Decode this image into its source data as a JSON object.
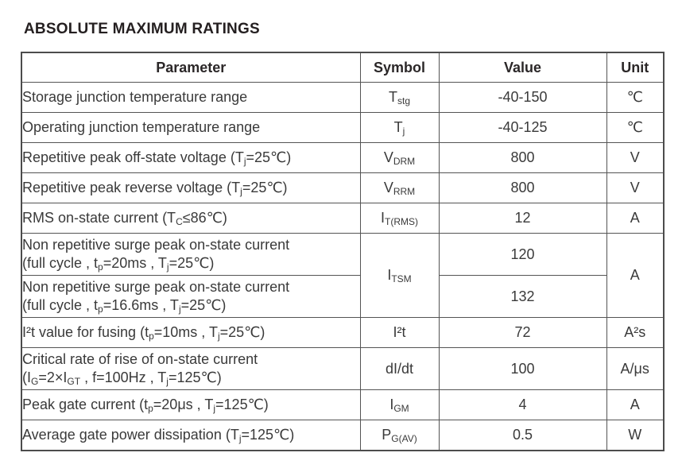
{
  "title": "ABSOLUTE MAXIMUM RATINGS",
  "table": {
    "headers": {
      "parameter": "Parameter",
      "symbol": "Symbol",
      "value": "Value",
      "unit": "Unit"
    },
    "rows": [
      {
        "parameter": [
          {
            "t": "Storage junction temperature range"
          }
        ],
        "symbol": [
          {
            "t": "T"
          },
          {
            "t": "stg",
            "sub": true
          }
        ],
        "value": "-40-150",
        "unit": "℃"
      },
      {
        "parameter": [
          {
            "t": "Operating junction temperature range"
          }
        ],
        "symbol": [
          {
            "t": "T"
          },
          {
            "t": "j",
            "sub": true
          }
        ],
        "value": "-40-125",
        "unit": "℃"
      },
      {
        "parameter": [
          {
            "t": "Repetitive peak off-state voltage (T"
          },
          {
            "t": "j",
            "sub": true
          },
          {
            "t": "=25℃)"
          }
        ],
        "symbol": [
          {
            "t": "V"
          },
          {
            "t": "DRM",
            "sub": true
          }
        ],
        "value": "800",
        "unit": "V"
      },
      {
        "parameter": [
          {
            "t": "Repetitive peak reverse voltage (T"
          },
          {
            "t": "j",
            "sub": true
          },
          {
            "t": "=25℃)"
          }
        ],
        "symbol": [
          {
            "t": "V"
          },
          {
            "t": "RRM",
            "sub": true
          }
        ],
        "value": "800",
        "unit": "V"
      },
      {
        "parameter": [
          {
            "t": "RMS on-state current (T"
          },
          {
            "t": "C",
            "sub": true
          },
          {
            "t": "≤86℃)"
          }
        ],
        "symbol": [
          {
            "t": "I"
          },
          {
            "t": "T(RMS)",
            "sub": true
          }
        ],
        "value": "12",
        "unit": "A"
      },
      {
        "parameter": [
          {
            "t": "Non repetitive surge peak on-state current"
          },
          {
            "br": true
          },
          {
            "t": "(full cycle , t"
          },
          {
            "t": "p",
            "sub": true
          },
          {
            "t": "=20ms , T"
          },
          {
            "t": "j",
            "sub": true
          },
          {
            "t": "=25℃)"
          }
        ],
        "symbol": [
          {
            "t": "I"
          },
          {
            "t": "TSM",
            "sub": true
          }
        ],
        "value": "120",
        "unit": "A"
      },
      {
        "parameter": [
          {
            "t": "Non repetitive surge peak on-state current"
          },
          {
            "br": true
          },
          {
            "t": "(full cycle , t"
          },
          {
            "t": "p",
            "sub": true
          },
          {
            "t": "=16.6ms , T"
          },
          {
            "t": "j",
            "sub": true
          },
          {
            "t": "=25℃)"
          }
        ],
        "value": "132"
      },
      {
        "parameter": [
          {
            "t": "I²t value for fusing (t"
          },
          {
            "t": "p",
            "sub": true
          },
          {
            "t": "=10ms , T"
          },
          {
            "t": "j",
            "sub": true
          },
          {
            "t": "=25℃)"
          }
        ],
        "symbol": [
          {
            "t": "I²t"
          }
        ],
        "value": "72",
        "unit": "A²s"
      },
      {
        "parameter": [
          {
            "t": "Critical rate of rise of on-state current"
          },
          {
            "br": true
          },
          {
            "t": "(I"
          },
          {
            "t": "G",
            "sub": true
          },
          {
            "t": "=2×I"
          },
          {
            "t": "GT",
            "sub": true
          },
          {
            "t": " , f=100Hz , T"
          },
          {
            "t": "j",
            "sub": true
          },
          {
            "t": "=125℃)"
          }
        ],
        "symbol": [
          {
            "t": "dI/dt"
          }
        ],
        "value": "100",
        "unit": "A/μs"
      },
      {
        "parameter": [
          {
            "t": "Peak gate current (t"
          },
          {
            "t": "p",
            "sub": true
          },
          {
            "t": "=20μs , T"
          },
          {
            "t": "j",
            "sub": true
          },
          {
            "t": "=125℃)"
          }
        ],
        "symbol": [
          {
            "t": "I"
          },
          {
            "t": "GM",
            "sub": true
          }
        ],
        "value": "4",
        "unit": "A"
      },
      {
        "parameter": [
          {
            "t": "Average gate power dissipation (T"
          },
          {
            "t": "j",
            "sub": true
          },
          {
            "t": "=125℃)"
          }
        ],
        "symbol": [
          {
            "t": "P"
          },
          {
            "t": "G(AV)",
            "sub": true
          }
        ],
        "value": "0.5",
        "unit": "W"
      }
    ]
  }
}
